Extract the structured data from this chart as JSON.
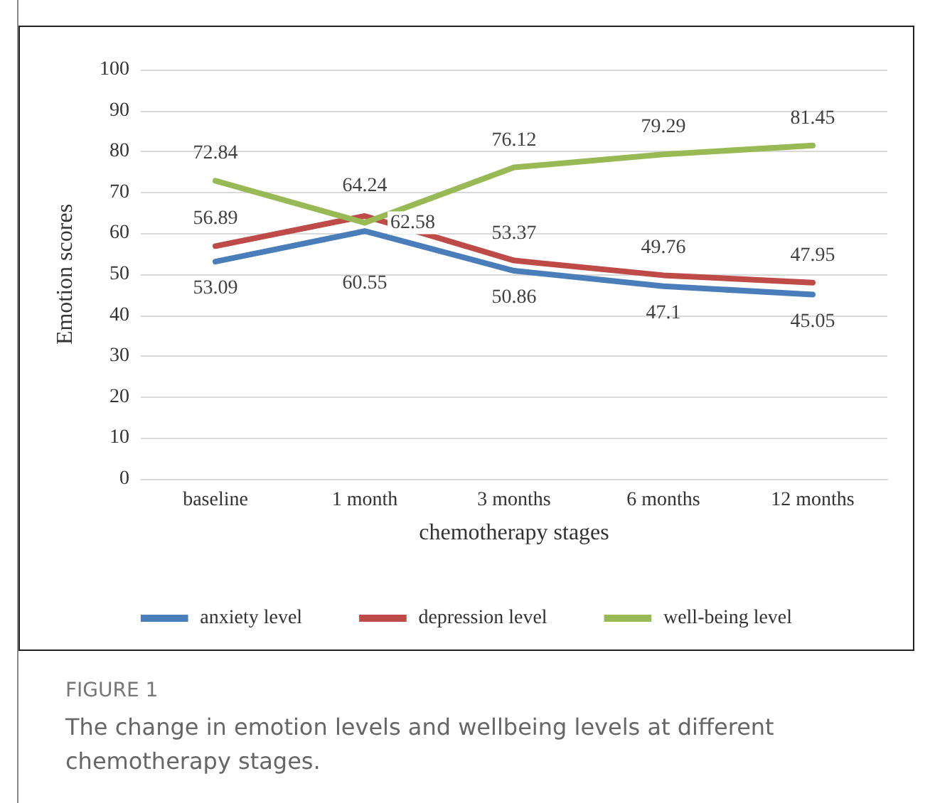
{
  "chart_data": {
    "type": "line",
    "title": "FIGURE 1",
    "subtitle": "The change in emotion levels and wellbeing levels at different chemotherapy stages.",
    "xlabel": "chemotherapy stages",
    "ylabel": "Emotion scores",
    "categories": [
      "baseline",
      "1 month",
      "3 months",
      "6 months",
      "12 months"
    ],
    "series": [
      {
        "name": "anxiety level",
        "color": "#4a7ebb",
        "values": [
          53.09,
          60.55,
          50.86,
          47.1,
          45.05
        ]
      },
      {
        "name": "depression level",
        "color": "#be4b48",
        "values": [
          56.89,
          64.24,
          53.37,
          49.76,
          47.95
        ]
      },
      {
        "name": "well-being level",
        "color": "#98b954",
        "values": [
          72.84,
          62.58,
          76.12,
          79.29,
          81.45
        ]
      }
    ],
    "ylim": [
      0,
      100
    ],
    "yticks": [
      0,
      10,
      20,
      30,
      40,
      50,
      60,
      70,
      80,
      90,
      100
    ],
    "grid": "y",
    "legend": "bottom",
    "marker": "none",
    "line_style": "solid",
    "data_labels": true
  }
}
